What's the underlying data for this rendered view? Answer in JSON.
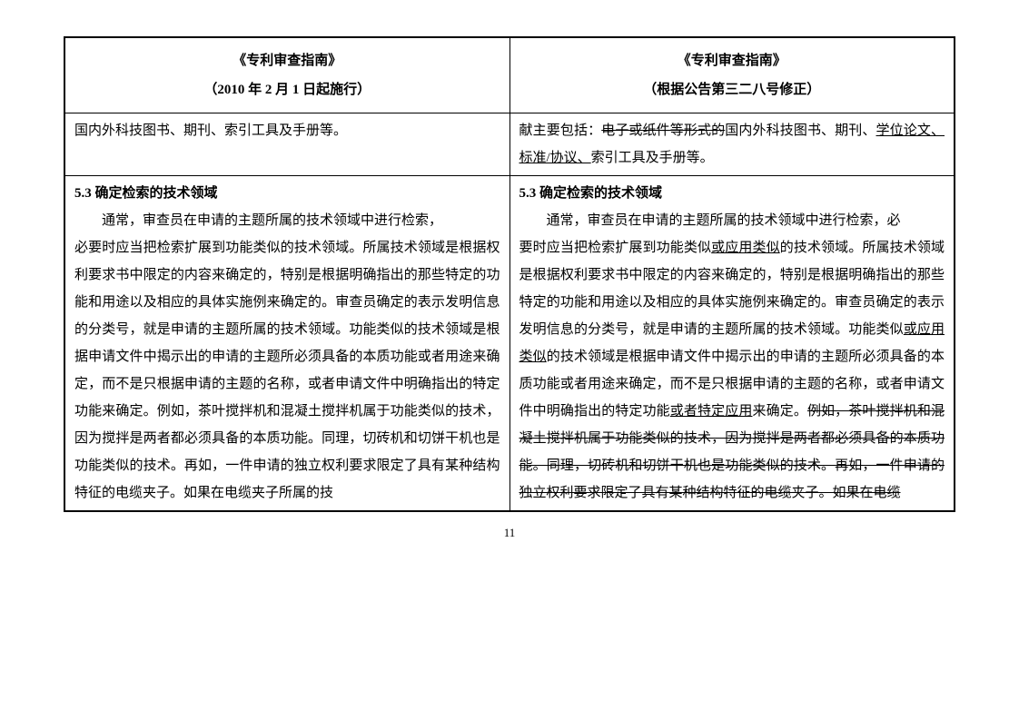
{
  "left": {
    "title": "《专利审查指南》",
    "subtitle": "（2010 年 2 月 1 日起施行）",
    "row1": "国内外科技图书、期刊、索引工具及手册等。",
    "section": "5.3 确定检索的技术领域",
    "p_pre": "通常，审查员在申请的主题所属的技术领域中进行检索，",
    "p_body": "必要时应当把检索扩展到功能类似的技术领域。所属技术领域是根据权利要求书中限定的内容来确定的，特别是根据明确指出的那些特定的功能和用途以及相应的具体实施例来确定的。审查员确定的表示发明信息的分类号，就是申请的主题所属的技术领域。功能类似的技术领域是根据申请文件中揭示出的申请的主题所必须具备的本质功能或者用途来确定，而不是只根据申请的主题的名称，或者申请文件中明确指出的特定功能来确定。例如，茶叶搅拌机和混凝土搅拌机属于功能类似的技术，因为搅拌是两者都必须具备的本质功能。同理，切砖机和切饼干机也是功能类似的技术。再如，一件申请的独立权利要求限定了具有某种结构特征的电缆夹子。如果在电缆夹子所属的技"
  },
  "right": {
    "title": "《专利审查指南》",
    "subtitle": "（根据公告第三二八号修正）",
    "r1_a": "献主要包括：",
    "r1_strike1": "电子或纸件等形式的",
    "r1_b": "国内外科技图书、期刊、",
    "r1_u1": "学位论文、标准/协议、",
    "r1_c": "索引工具及手册等。",
    "section": "5.3 确定检索的技术领域",
    "s1": "通常，审查员在申请的主题所属的技术领域中进行检索，必",
    "s2": "要时应当把检索扩展到功能类似",
    "u1": "或应用类似",
    "s3": "的技术领域。所属技术领域是根据权利要求书中限定的内容来确定的，特别是根据明确指出的那些特定的功能和用途以及相应的具体实施例来确定的。审查员确定的表示发明信息的分类号，就是申请的主题所属的技术领域。功能类似",
    "u2": "或应用类似",
    "s4": "的技术领域是根据申请文件中揭示出的申请的主题所必须具备的本质功能或者用途来确定，而不是只根据申请的主题的名称，或者申请文件中明确指出的特定功能",
    "u3": "或者特定应用",
    "s5": "来确定。",
    "strike2": "例如，茶叶搅拌机和混凝土搅拌机属于功能类似的技术，因为搅拌是两者都必须具备的本质功能。同理，切砖机和切饼干机也是功能类似的技术。再如，一件申请的独立权利要求限定了具有某种结构特征的电缆夹子。如果在电缆"
  },
  "page_number": "11"
}
